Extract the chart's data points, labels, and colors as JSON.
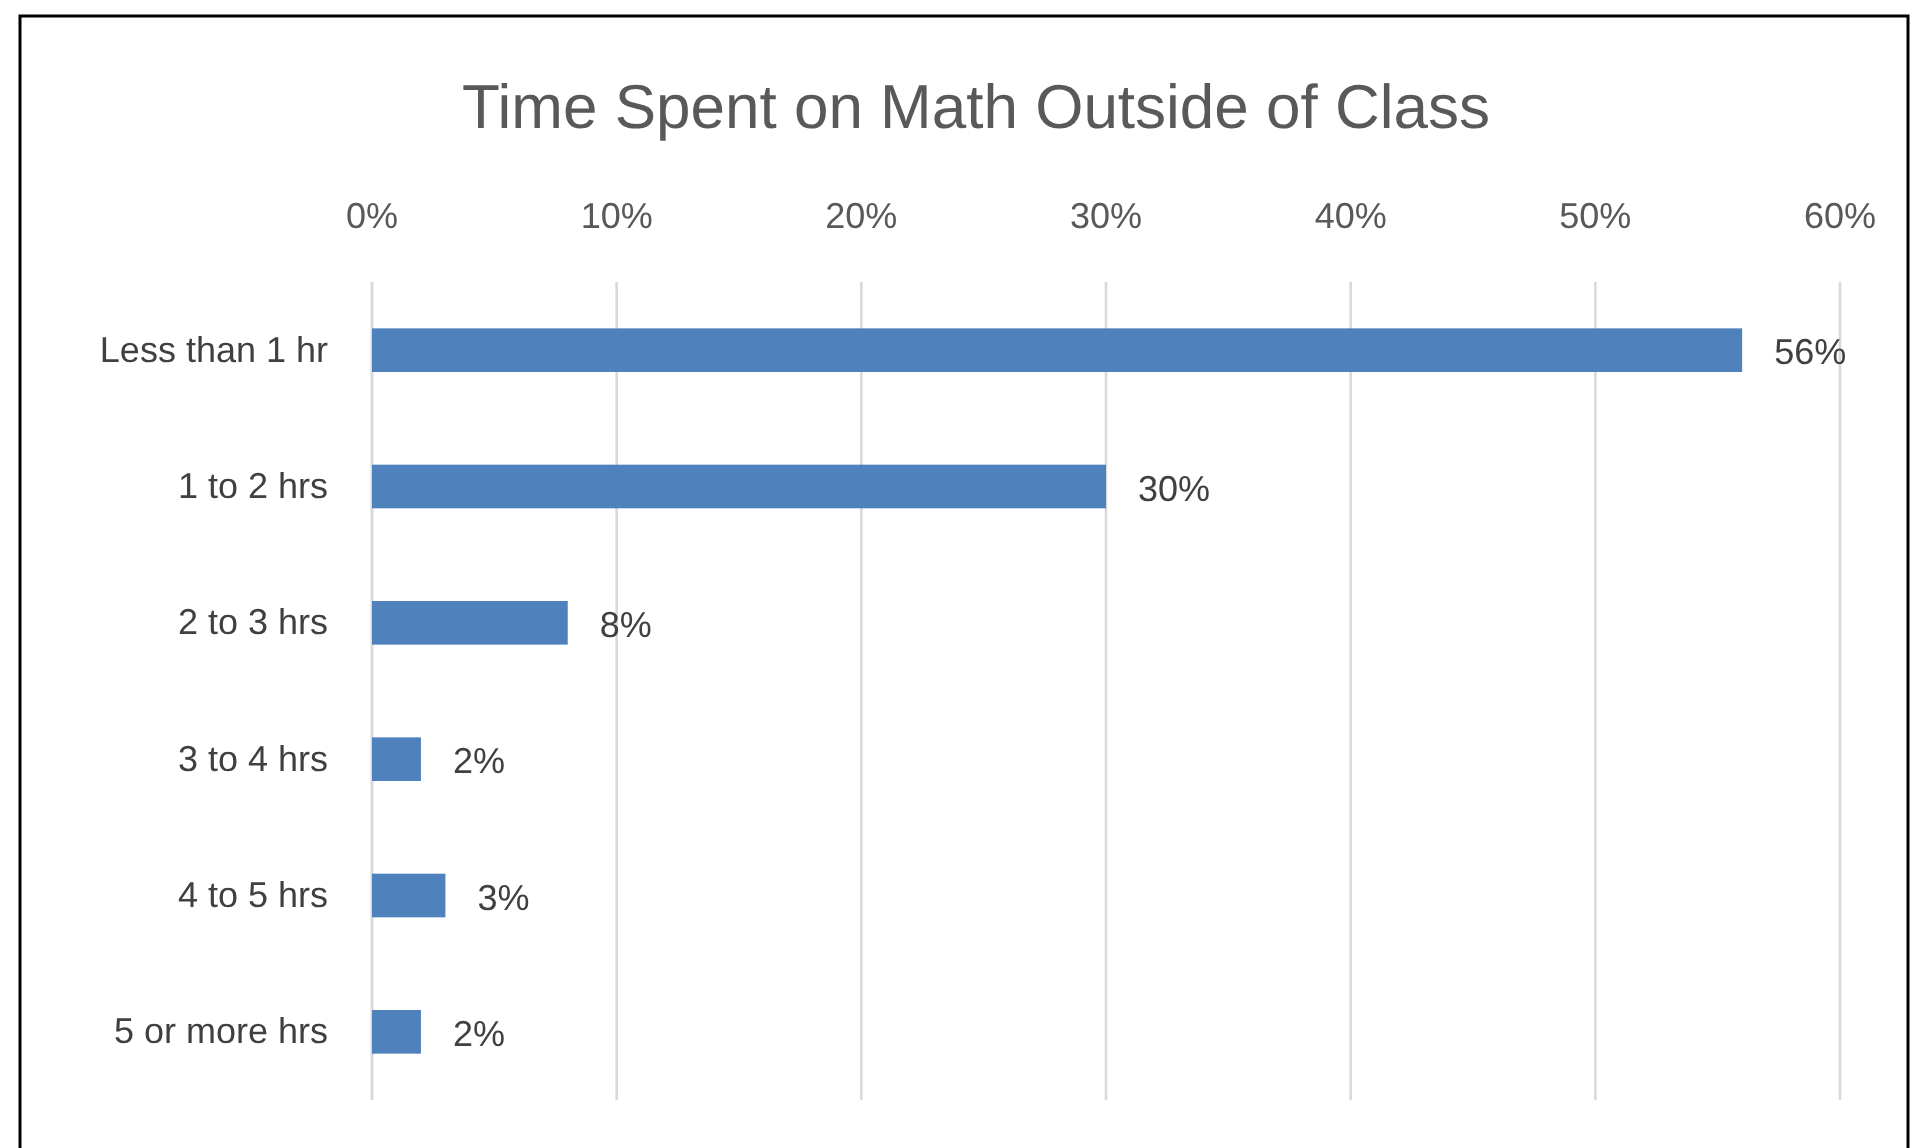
{
  "chart_data": {
    "type": "bar",
    "orientation": "horizontal",
    "title": "Time Spent on Math Outside of Class",
    "categories": [
      "Less than 1 hr",
      "1 to 2 hrs",
      "2 to 3 hrs",
      "3 to 4 hrs",
      "4 to 5 hrs",
      "5 or more hrs"
    ],
    "values": [
      56,
      30,
      8,
      2,
      3,
      2
    ],
    "color": "#4f81bd",
    "xlim": [
      0,
      60
    ],
    "xticks": [
      {
        "value": 0,
        "label": "0%"
      },
      {
        "value": 10,
        "label": "10%"
      },
      {
        "value": 20,
        "label": "20%"
      },
      {
        "value": 30,
        "label": "30%"
      },
      {
        "value": 40,
        "label": "40%"
      },
      {
        "value": 50,
        "label": "50%"
      },
      {
        "value": 60,
        "label": "60%"
      }
    ],
    "value_labels": [
      "56%",
      "30%",
      "8%",
      "2%",
      "3%",
      "2%"
    ],
    "grid": "x"
  }
}
